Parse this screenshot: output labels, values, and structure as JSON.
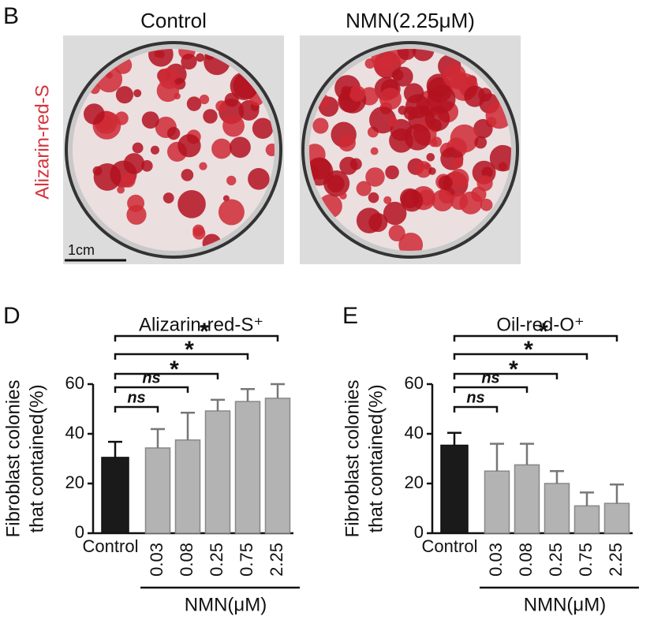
{
  "panel_B": {
    "label": "B",
    "titles": [
      "Control",
      "NMN(2.25μM)"
    ],
    "side_label": "Alizarin-red-S",
    "scale_bar": "1cm"
  },
  "chart_data": [
    {
      "type": "bar",
      "panel_label": "D",
      "title": "Alizarin-red-S⁺",
      "ylabel": [
        "Fibroblast colonies",
        "that contained(%)"
      ],
      "xlabel": "NMN(μM)",
      "categories": [
        "Control",
        "0.03",
        "0.08",
        "0.25",
        "0.75",
        "2.25"
      ],
      "values": [
        30.5,
        34.3,
        37.5,
        49.2,
        53,
        54.3
      ],
      "errors": [
        6.3,
        7.6,
        11,
        4.5,
        5,
        5.7
      ],
      "colors": [
        "#1a1a1a",
        "#b3b3b3",
        "#b3b3b3",
        "#b3b3b3",
        "#b3b3b3",
        "#b3b3b3"
      ],
      "annotations": [
        "ns",
        "ns",
        "*",
        "*",
        "*"
      ],
      "ylim": [
        0,
        60
      ],
      "yticks": [
        0,
        20,
        40,
        60
      ]
    },
    {
      "type": "bar",
      "panel_label": "E",
      "title": "Oil-red-O⁺",
      "ylabel": [
        "Fibroblast colonies",
        "that contained(%)"
      ],
      "xlabel": "NMN(μM)",
      "categories": [
        "Control",
        "0.03",
        "0.08",
        "0.25",
        "0.75",
        "2.25"
      ],
      "values": [
        35.4,
        25,
        27.5,
        20,
        11,
        12
      ],
      "errors": [
        5,
        11,
        8.5,
        5,
        5.4,
        7.6
      ],
      "colors": [
        "#1a1a1a",
        "#b3b3b3",
        "#b3b3b3",
        "#b3b3b3",
        "#b3b3b3",
        "#b3b3b3"
      ],
      "annotations": [
        "ns",
        "ns",
        "*",
        "*",
        "*"
      ],
      "ylim": [
        0,
        60
      ],
      "yticks": [
        0,
        20,
        40,
        60
      ]
    }
  ]
}
